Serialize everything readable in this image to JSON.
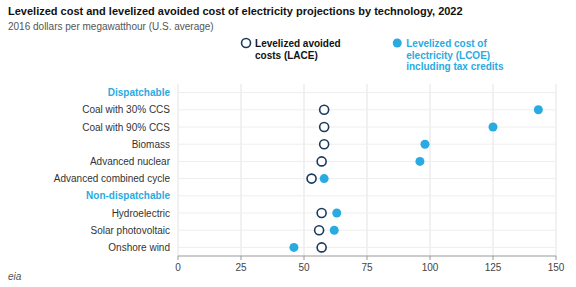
{
  "chart_data": {
    "type": "dot",
    "title": "Levelized cost and levelized avoided cost of electricity projections by technology, 2022",
    "subtitle": "2016 dollars per megawatthour (U.S. average)",
    "annotations": [
      "eia"
    ],
    "orientation": "horizontal",
    "categories": [
      "Dispatchable",
      "Coal with 30% CCS",
      "Coal with 90% CCS",
      "Biomass",
      "Advanced nuclear",
      "Advanced combined cycle",
      "Non-dispatchable",
      "Hydroelectric",
      "Solar photovoltaic",
      "Onshore wind"
    ],
    "series": [
      {
        "name": "Levelized avoided\ncosts (LACE)",
        "color": "#1b3a5c",
        "marker": "open-circle",
        "values": [
          null,
          58,
          58,
          58,
          57,
          53,
          null,
          57,
          56,
          57
        ]
      },
      {
        "name": "Levelized cost of\nelectricity (LCOE)\nincluding tax credits",
        "color": "#29abe2",
        "marker": "circle",
        "values": [
          null,
          143,
          125,
          98,
          96,
          58,
          null,
          63,
          62,
          46
        ]
      }
    ],
    "xlim": [
      0,
      150
    ],
    "xticks": [
      0,
      25,
      50,
      75,
      100,
      125,
      150
    ],
    "grid": true
  }
}
